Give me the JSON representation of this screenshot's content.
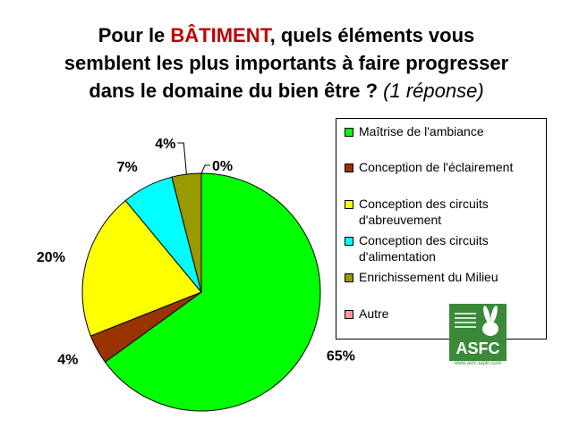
{
  "title": {
    "line1_before": "Pour le ",
    "line1_highlight": "BÂTIMENT",
    "line1_after": ", quels éléments vous",
    "line2": "semblent les plus importants à faire progresser",
    "line3": "dans le domaine du bien être ? ",
    "line3_note": "(1 réponse)",
    "highlight_color": "#c00000"
  },
  "chart_data": {
    "type": "pie",
    "slices": [
      {
        "name": "Maîtrise de l'ambiance",
        "value": 65,
        "label": "65%",
        "color": "#00ff00"
      },
      {
        "name": "Conception de l'éclairement",
        "value": 4,
        "label": "4%",
        "color": "#993300"
      },
      {
        "name": "Conception des circuits d'abreuvement",
        "value": 20,
        "label": "20%",
        "color": "#ffff00"
      },
      {
        "name": "Conception des circuits d'alimentation",
        "value": 7,
        "label": "7%",
        "color": "#00ffff"
      },
      {
        "name": "Enrichissement du Milieu",
        "value": 4,
        "label": "4%",
        "color": "#999900"
      },
      {
        "name": "Autre",
        "value": 0,
        "label": "0%",
        "color": "#ff9999"
      }
    ],
    "start": "12 o'clock",
    "direction": "clockwise",
    "legend_position": "right"
  },
  "legend": [
    {
      "line1": "Maîtrise de l'ambiance",
      "line2": ""
    },
    {
      "line1": "Conception de l'éclairement",
      "line2": ""
    },
    {
      "line1": "Conception des circuits",
      "line2": "d'abreuvement"
    },
    {
      "line1": "Conception des circuits",
      "line2": "d'alimentation"
    },
    {
      "line1": "Enrichissement du Milieu",
      "line2": ""
    },
    {
      "line1": "Autre",
      "line2": ""
    }
  ],
  "logo": {
    "text": "ASFC",
    "url": "www.asfc-lapin.com",
    "icon": "rabbit-icon",
    "color": "#3a8a3a"
  }
}
